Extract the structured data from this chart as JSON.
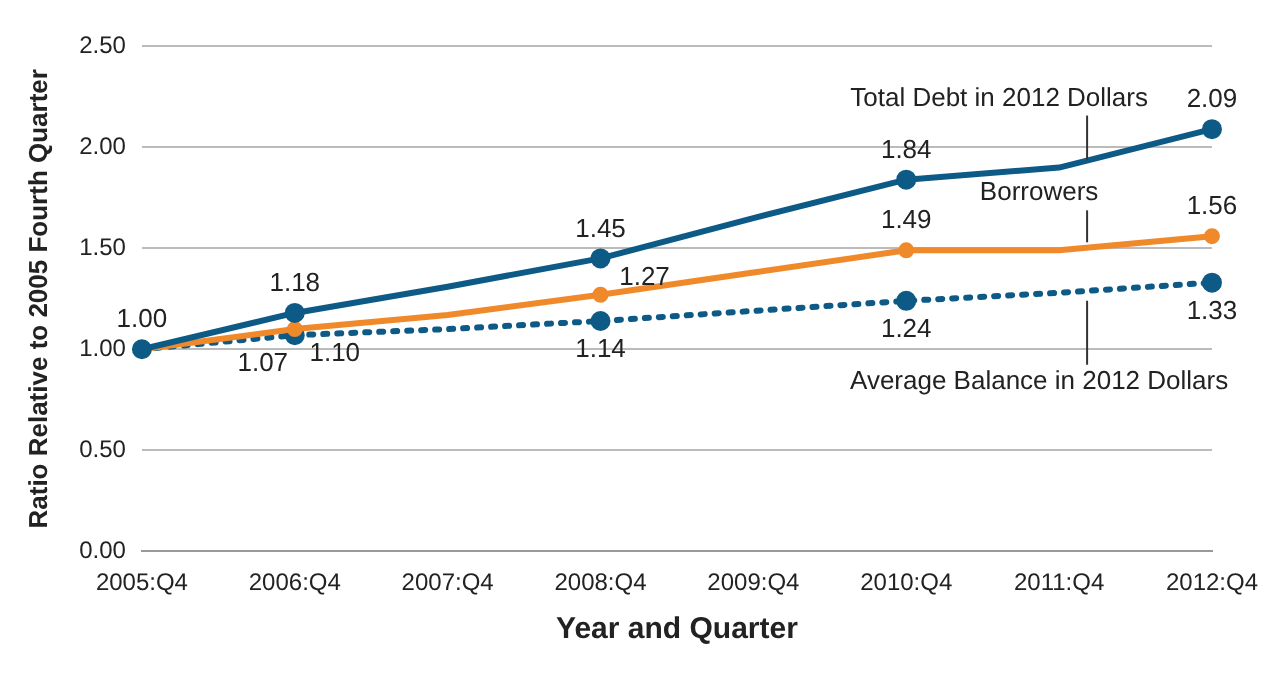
{
  "chart_data": {
    "type": "line",
    "xlabel": "Year and Quarter",
    "ylabel": "Ratio Relative to 2005 Fourth Quarter",
    "categories": [
      "2005:Q4",
      "2006:Q4",
      "2007:Q4",
      "2008:Q4",
      "2009:Q4",
      "2010:Q4",
      "2011:Q4",
      "2012:Q4"
    ],
    "series": [
      {
        "name": "Total Debt in 2012 Dollars",
        "color": "#0e5a86",
        "line_style": "solid",
        "values": [
          1.0,
          1.18,
          1.31,
          1.45,
          1.65,
          1.84,
          1.9,
          2.09
        ],
        "value_labels": [
          "1.00",
          "1.18",
          null,
          "1.45",
          null,
          "1.84",
          null,
          "2.09"
        ]
      },
      {
        "name": "Borrowers",
        "color": "#f0892a",
        "line_style": "solid",
        "values": [
          1.0,
          1.1,
          1.17,
          1.27,
          1.38,
          1.49,
          1.49,
          1.56
        ],
        "value_labels": [
          null,
          "1.10",
          null,
          "1.27",
          null,
          "1.49",
          null,
          "1.56"
        ]
      },
      {
        "name": "Average Balance in 2012 Dollars",
        "color": "#0e5a86",
        "line_style": "dotted",
        "values": [
          1.0,
          1.07,
          1.1,
          1.14,
          1.19,
          1.24,
          1.28,
          1.33
        ],
        "value_labels": [
          null,
          "1.07",
          null,
          "1.14",
          null,
          "1.24",
          null,
          "1.33"
        ]
      }
    ],
    "marker": "circle",
    "legend": false,
    "grid": "y",
    "ylim": [
      0,
      2.5
    ],
    "yticks": [
      {
        "value": 0,
        "label": "0.00"
      },
      {
        "value": 0.5,
        "label": "0.50"
      },
      {
        "value": 1,
        "label": "1.00"
      },
      {
        "value": 1.5,
        "label": "1.50"
      },
      {
        "value": 2,
        "label": "2.00"
      },
      {
        "value": 2.5,
        "label": "2.50"
      }
    ]
  }
}
